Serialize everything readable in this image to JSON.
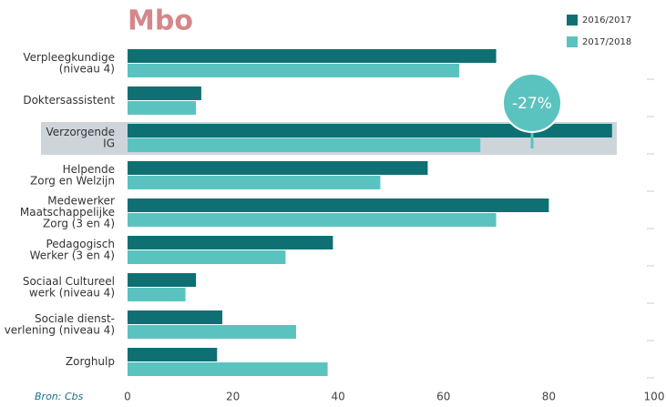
{
  "chart_data": {
    "type": "hbar",
    "title": "Mbo",
    "source": "Bron: Cbs",
    "annotation": "-27%",
    "categories": [
      [
        "Verpleegkundige",
        "(niveau 4)"
      ],
      [
        "Doktersassistent"
      ],
      [
        "Verzorgende",
        "IG"
      ],
      [
        "Helpende",
        "Zorg en Welzijn"
      ],
      [
        "Medewerker",
        "Maatschappelijke",
        "Zorg (3 en 4)"
      ],
      [
        "Pedagogisch",
        "Werker (3 en 4)"
      ],
      [
        "Sociaal Cultureel",
        "werk (niveau 4)"
      ],
      [
        "Sociale dienst-",
        "verlening (niveau 4)"
      ],
      [
        "Zorghulp"
      ]
    ],
    "series": [
      {
        "name": "2016/2017",
        "color": "#0e7073",
        "values": [
          70,
          14,
          92,
          57,
          80,
          39,
          13,
          18,
          17
        ]
      },
      {
        "name": "2017/2018",
        "color": "#5bc3bf",
        "values": [
          63,
          13,
          67,
          48,
          70,
          30,
          11,
          32,
          38
        ]
      }
    ],
    "xlim": [
      0,
      100
    ],
    "xticks": [
      0,
      20,
      40,
      60,
      80,
      100
    ],
    "grid": false
  }
}
